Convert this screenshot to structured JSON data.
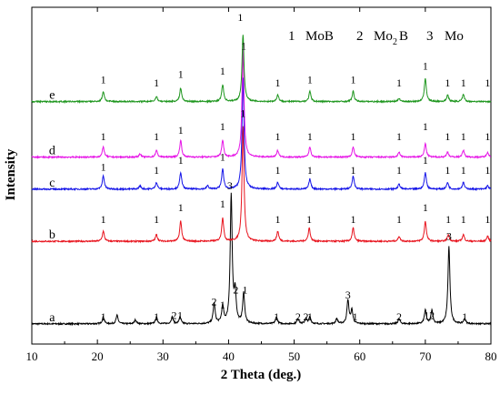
{
  "chart_data": {
    "type": "line",
    "xlabel": "2 Theta (deg.)",
    "ylabel": "Intensity",
    "xlim": [
      10,
      80
    ],
    "xticks": [
      10,
      20,
      30,
      40,
      50,
      60,
      70,
      80
    ],
    "legend": {
      "items": [
        {
          "num": "1",
          "text": "MoB"
        },
        {
          "num": "2",
          "text": "Mo",
          "sub": "2",
          "suffix": "B"
        },
        {
          "num": "3",
          "text": "Mo"
        }
      ]
    },
    "series": [
      {
        "name": "a",
        "color": "#000000",
        "base": 0.06,
        "peaks": [
          [
            20.9,
            0.02
          ],
          [
            23.0,
            0.025
          ],
          [
            25.8,
            0.012
          ],
          [
            29.0,
            0.02
          ],
          [
            31.4,
            0.02
          ],
          [
            32.6,
            0.02
          ],
          [
            37.8,
            0.06
          ],
          [
            39.1,
            0.05
          ],
          [
            40.4,
            0.38
          ],
          [
            41.0,
            0.09
          ],
          [
            42.3,
            0.09
          ],
          [
            47.3,
            0.02
          ],
          [
            50.6,
            0.015
          ],
          [
            51.8,
            0.015
          ],
          [
            52.4,
            0.02
          ],
          [
            56.5,
            0.015
          ],
          [
            58.2,
            0.07
          ],
          [
            58.8,
            0.04
          ],
          [
            66.0,
            0.015
          ],
          [
            70.0,
            0.04
          ],
          [
            71.0,
            0.04
          ],
          [
            73.6,
            0.23
          ],
          [
            76.0,
            0.015
          ]
        ],
        "labels": [
          [
            20.9,
            "1",
            0.07
          ],
          [
            29.0,
            "1",
            0.07
          ],
          [
            31.7,
            "2",
            0.075
          ],
          [
            32.6,
            "1",
            0.075
          ],
          [
            37.8,
            "2",
            0.115
          ],
          [
            39.1,
            "1",
            0.105
          ],
          [
            40.2,
            "3",
            0.46
          ],
          [
            41.1,
            "2",
            0.15
          ],
          [
            42.5,
            "1",
            0.15
          ],
          [
            47.3,
            "1",
            0.07
          ],
          [
            50.6,
            "2",
            0.07
          ],
          [
            51.8,
            "2",
            0.07
          ],
          [
            52.4,
            "1",
            0.07
          ],
          [
            58.2,
            "3",
            0.135
          ],
          [
            59.3,
            "1",
            0.07
          ],
          [
            66.0,
            "2",
            0.07
          ],
          [
            70.2,
            "1",
            0.075
          ],
          [
            71.0,
            "2",
            0.075
          ],
          [
            73.6,
            "3",
            0.31
          ],
          [
            76.0,
            "1",
            0.07
          ]
        ],
        "trace_label": "a"
      },
      {
        "name": "b",
        "color": "#e8141e",
        "base": 0.305,
        "peaks": [
          [
            20.9,
            0.03
          ],
          [
            29.0,
            0.02
          ],
          [
            32.7,
            0.06
          ],
          [
            39.1,
            0.07
          ],
          [
            42.2,
            0.34
          ],
          [
            47.5,
            0.03
          ],
          [
            52.3,
            0.04
          ],
          [
            59.0,
            0.04
          ],
          [
            66.0,
            0.015
          ],
          [
            70.0,
            0.06
          ],
          [
            73.5,
            0.02
          ],
          [
            75.8,
            0.02
          ],
          [
            79.5,
            0.015
          ]
        ],
        "labels": [
          [
            20.9,
            "1",
            0.36
          ],
          [
            29.0,
            "1",
            0.36
          ],
          [
            32.7,
            "1",
            0.395
          ],
          [
            39.1,
            "1",
            0.405
          ],
          [
            42.2,
            "1",
            0.675
          ],
          [
            47.5,
            "1",
            0.36
          ],
          [
            52.3,
            "1",
            0.36
          ],
          [
            59.0,
            "1",
            0.36
          ],
          [
            66.0,
            "1",
            0.36
          ],
          [
            70.0,
            "1",
            0.395
          ],
          [
            73.5,
            "1",
            0.36
          ],
          [
            75.8,
            "1",
            0.36
          ],
          [
            79.5,
            "1",
            0.36
          ]
        ],
        "trace_label": "b"
      },
      {
        "name": "c",
        "color": "#1414e8",
        "base": 0.46,
        "peaks": [
          [
            20.9,
            0.04
          ],
          [
            26.5,
            0.01
          ],
          [
            29.0,
            0.02
          ],
          [
            32.7,
            0.05
          ],
          [
            36.8,
            0.01
          ],
          [
            39.1,
            0.06
          ],
          [
            42.2,
            0.33
          ],
          [
            47.5,
            0.02
          ],
          [
            52.4,
            0.03
          ],
          [
            59.0,
            0.04
          ],
          [
            66.0,
            0.015
          ],
          [
            70.0,
            0.05
          ],
          [
            73.4,
            0.02
          ],
          [
            75.8,
            0.02
          ],
          [
            79.5,
            0.01
          ]
        ],
        "labels": [
          [
            20.9,
            "1",
            0.515
          ],
          [
            29.0,
            "1",
            0.505
          ],
          [
            32.7,
            "1",
            0.535
          ],
          [
            39.1,
            "1",
            0.545
          ],
          [
            47.5,
            "1",
            0.505
          ],
          [
            52.4,
            "1",
            0.505
          ],
          [
            59.0,
            "1",
            0.505
          ],
          [
            66.0,
            "1",
            0.505
          ],
          [
            70.0,
            "1",
            0.535
          ],
          [
            73.4,
            "1",
            0.505
          ],
          [
            75.8,
            "1",
            0.505
          ],
          [
            79.5,
            "1",
            0.505
          ]
        ],
        "trace_label": "c"
      },
      {
        "name": "d",
        "color": "#e614e6",
        "base": 0.555,
        "peaks": [
          [
            20.9,
            0.03
          ],
          [
            26.5,
            0.01
          ],
          [
            29.0,
            0.02
          ],
          [
            32.7,
            0.05
          ],
          [
            39.1,
            0.05
          ],
          [
            42.2,
            0.32
          ],
          [
            47.5,
            0.02
          ],
          [
            52.4,
            0.03
          ],
          [
            59.0,
            0.03
          ],
          [
            66.0,
            0.015
          ],
          [
            70.0,
            0.04
          ],
          [
            73.4,
            0.015
          ],
          [
            75.8,
            0.02
          ],
          [
            79.5,
            0.015
          ]
        ],
        "labels": [
          [
            20.9,
            "1",
            0.605
          ],
          [
            29.0,
            "1",
            0.605
          ],
          [
            32.7,
            "1",
            0.625
          ],
          [
            39.1,
            "1",
            0.635
          ],
          [
            42.3,
            "1",
            0.875
          ],
          [
            47.5,
            "1",
            0.605
          ],
          [
            52.4,
            "1",
            0.605
          ],
          [
            59.0,
            "1",
            0.605
          ],
          [
            66.0,
            "1",
            0.605
          ],
          [
            70.0,
            "1",
            0.635
          ],
          [
            73.4,
            "1",
            0.605
          ],
          [
            75.8,
            "1",
            0.605
          ],
          [
            79.5,
            "1",
            0.605
          ]
        ],
        "trace_label": "d"
      },
      {
        "name": "e",
        "color": "#1e961e",
        "base": 0.72,
        "peaks": [
          [
            20.9,
            0.03
          ],
          [
            29.0,
            0.015
          ],
          [
            32.7,
            0.04
          ],
          [
            39.1,
            0.05
          ],
          [
            42.2,
            0.2
          ],
          [
            47.5,
            0.02
          ],
          [
            52.4,
            0.03
          ],
          [
            59.0,
            0.03
          ],
          [
            66.0,
            0.01
          ],
          [
            70.0,
            0.07
          ],
          [
            73.4,
            0.02
          ],
          [
            75.8,
            0.02
          ]
        ],
        "labels": [
          [
            20.9,
            "1",
            0.775
          ],
          [
            29.0,
            "1",
            0.765
          ],
          [
            32.7,
            "1",
            0.79
          ],
          [
            39.1,
            "1",
            0.8
          ],
          [
            41.8,
            "1",
            0.96
          ],
          [
            47.5,
            "1",
            0.765
          ],
          [
            52.4,
            "1",
            0.775
          ],
          [
            59.0,
            "1",
            0.775
          ],
          [
            66.0,
            "1",
            0.765
          ],
          [
            70.0,
            "1",
            0.815
          ],
          [
            73.4,
            "1",
            0.765
          ],
          [
            75.8,
            "1",
            0.765
          ],
          [
            79.5,
            "1",
            0.765
          ]
        ],
        "trace_label": "e"
      }
    ]
  }
}
